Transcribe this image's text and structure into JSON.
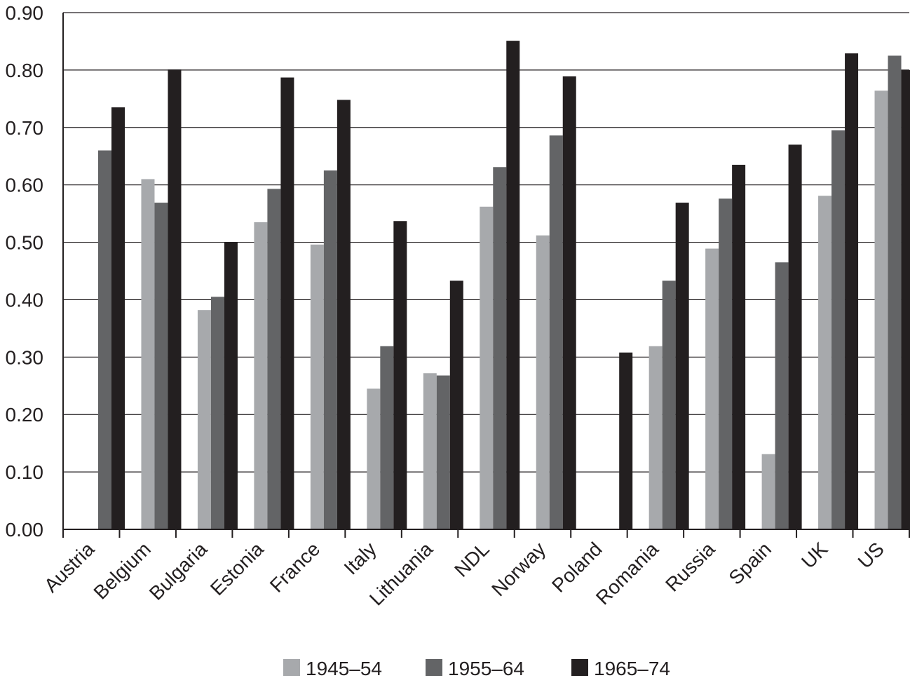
{
  "chart_data": {
    "type": "bar",
    "title": "",
    "xlabel": "",
    "ylabel": "",
    "ylim": [
      0,
      0.9
    ],
    "yticks": [
      "0.00",
      "0.10",
      "0.20",
      "0.30",
      "0.40",
      "0.50",
      "0.60",
      "0.70",
      "0.80",
      "0.90"
    ],
    "grid": true,
    "legend_position": "bottom",
    "categories": [
      "Austria",
      "Belgium",
      "Bulgaria",
      "Estonia",
      "France",
      "Italy",
      "Lithuania",
      "NDL",
      "Norway",
      "Poland",
      "Romania",
      "Russia",
      "Spain",
      "UK",
      "US"
    ],
    "series": [
      {
        "name": "1945–54",
        "color": "#a7a9ac",
        "values": [
          null,
          0.61,
          0.382,
          0.535,
          0.496,
          0.245,
          0.272,
          0.562,
          0.512,
          null,
          0.319,
          0.489,
          0.131,
          0.581,
          0.764
        ]
      },
      {
        "name": "1955–64",
        "color": "#636466",
        "values": [
          0.66,
          0.569,
          0.405,
          0.593,
          0.625,
          0.319,
          0.268,
          0.631,
          0.686,
          null,
          0.433,
          0.576,
          0.465,
          0.695,
          0.825
        ]
      },
      {
        "name": "1965–74",
        "color": "#231f20",
        "values": [
          0.735,
          0.801,
          0.5,
          0.787,
          0.748,
          0.537,
          0.433,
          0.851,
          0.789,
          0.308,
          0.569,
          0.635,
          0.67,
          0.829,
          0.8
        ]
      }
    ]
  }
}
